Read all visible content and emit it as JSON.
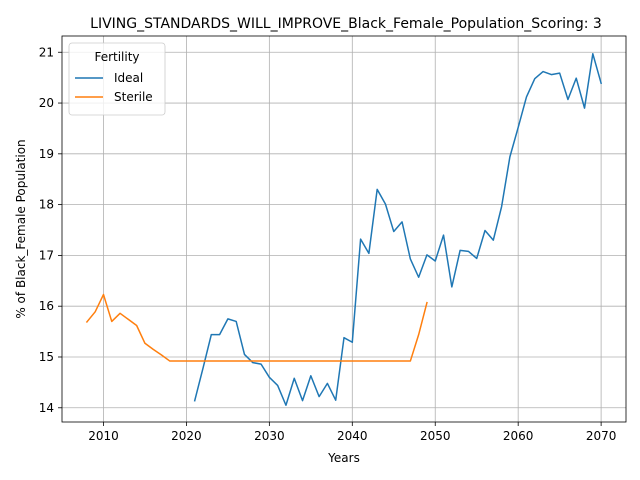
{
  "chart_data": {
    "type": "line",
    "title": "LIVING_STANDARDS_WILL_IMPROVE_Black_Female_Population_Scoring: 3",
    "xlabel": "Years",
    "ylabel": "% of Black_Female Population",
    "xlim": [
      2005,
      2073
    ],
    "ylim": [
      13.72,
      21.32
    ],
    "xticks": [
      2010,
      2020,
      2030,
      2040,
      2050,
      2060,
      2070
    ],
    "yticks": [
      14,
      15,
      16,
      17,
      18,
      19,
      20,
      21
    ],
    "grid": true,
    "legend": {
      "title": "Fertility",
      "position": "top-left"
    },
    "series": [
      {
        "name": "Ideal",
        "color": "#1f77b4",
        "x": [
          2021,
          2022,
          2023,
          2024,
          2025,
          2026,
          2027,
          2028,
          2029,
          2030,
          2031,
          2032,
          2033,
          2034,
          2035,
          2036,
          2037,
          2038,
          2039,
          2040,
          2041,
          2042,
          2043,
          2044,
          2045,
          2046,
          2047,
          2048,
          2049,
          2050,
          2051,
          2052,
          2053,
          2054,
          2055,
          2056,
          2057,
          2058,
          2059,
          2060,
          2061,
          2062,
          2063,
          2064,
          2065,
          2066,
          2067,
          2068,
          2069,
          2070
        ],
        "y": [
          14.14,
          14.78,
          15.44,
          15.44,
          15.75,
          15.7,
          15.05,
          14.89,
          14.86,
          14.6,
          14.44,
          14.05,
          14.58,
          14.14,
          14.63,
          14.22,
          14.48,
          14.15,
          15.38,
          15.29,
          17.32,
          17.04,
          18.3,
          18.01,
          17.47,
          17.66,
          16.93,
          16.57,
          17.01,
          16.89,
          17.4,
          16.38,
          17.1,
          17.08,
          16.94,
          17.49,
          17.3,
          17.96,
          18.94,
          19.52,
          20.12,
          20.48,
          20.62,
          20.56,
          20.59,
          20.07,
          20.49,
          19.9,
          20.97,
          20.39
        ]
      },
      {
        "name": "Sterile",
        "color": "#ff7f0e",
        "x": [
          2008,
          2009,
          2010,
          2011,
          2012,
          2013,
          2014,
          2015,
          2016,
          2017,
          2018,
          2019,
          2020,
          2021,
          2022,
          2023,
          2024,
          2025,
          2026,
          2027,
          2028,
          2029,
          2030,
          2031,
          2032,
          2033,
          2034,
          2035,
          2036,
          2037,
          2038,
          2039,
          2040,
          2041,
          2042,
          2043,
          2044,
          2045,
          2046,
          2047,
          2048,
          2049
        ],
        "y": [
          15.69,
          15.89,
          16.23,
          15.7,
          15.86,
          15.74,
          15.62,
          15.27,
          15.15,
          15.04,
          14.92,
          14.92,
          14.92,
          14.92,
          14.92,
          14.92,
          14.92,
          14.92,
          14.92,
          14.92,
          14.92,
          14.92,
          14.92,
          14.92,
          14.92,
          14.92,
          14.92,
          14.92,
          14.92,
          14.92,
          14.92,
          14.92,
          14.92,
          14.92,
          14.92,
          14.92,
          14.92,
          14.92,
          14.92,
          14.92,
          15.44,
          16.07
        ]
      }
    ]
  }
}
